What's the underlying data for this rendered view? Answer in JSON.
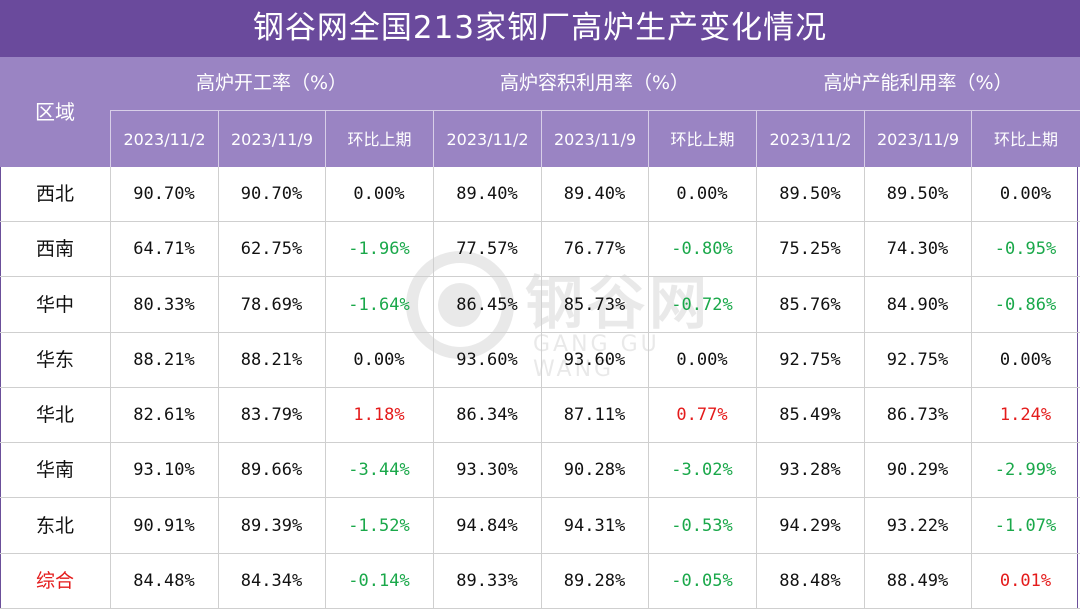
{
  "title": "钢谷网全国213家钢厂高炉生产变化情况",
  "header": {
    "region": "区域",
    "groups": [
      "高炉开工率（%）",
      "高炉容积利用率（%）",
      "高炉产能利用率（%）"
    ],
    "subheads": [
      "2023/11/2",
      "2023/11/9",
      "环比上期"
    ]
  },
  "rows": [
    {
      "region": "西北",
      "values": [
        "90.70%",
        "90.70%",
        "0.00%",
        "89.40%",
        "89.40%",
        "0.00%",
        "89.50%",
        "89.50%",
        "0.00%"
      ]
    },
    {
      "region": "西南",
      "values": [
        "64.71%",
        "62.75%",
        "-1.96%",
        "77.57%",
        "76.77%",
        "-0.80%",
        "75.25%",
        "74.30%",
        "-0.95%"
      ]
    },
    {
      "region": "华中",
      "values": [
        "80.33%",
        "78.69%",
        "-1.64%",
        "86.45%",
        "85.73%",
        "-0.72%",
        "85.76%",
        "84.90%",
        "-0.86%"
      ]
    },
    {
      "region": "华东",
      "values": [
        "88.21%",
        "88.21%",
        "0.00%",
        "93.60%",
        "93.60%",
        "0.00%",
        "92.75%",
        "92.75%",
        "0.00%"
      ]
    },
    {
      "region": "华北",
      "values": [
        "82.61%",
        "83.79%",
        "1.18%",
        "86.34%",
        "87.11%",
        "0.77%",
        "85.49%",
        "86.73%",
        "1.24%"
      ]
    },
    {
      "region": "华南",
      "values": [
        "93.10%",
        "89.66%",
        "-3.44%",
        "93.30%",
        "90.28%",
        "-3.02%",
        "93.28%",
        "90.29%",
        "-2.99%"
      ]
    },
    {
      "region": "东北",
      "values": [
        "90.91%",
        "89.39%",
        "-1.52%",
        "94.84%",
        "94.31%",
        "-0.53%",
        "94.29%",
        "93.22%",
        "-1.07%"
      ]
    },
    {
      "region": "综合",
      "values": [
        "84.48%",
        "84.34%",
        "-0.14%",
        "89.33%",
        "89.28%",
        "-0.05%",
        "88.48%",
        "88.49%",
        "0.01%"
      ]
    }
  ],
  "watermark": {
    "logo": "钢谷网",
    "sub": "GANG GU WANG"
  },
  "colors": {
    "title_bg": "#6a4a9c",
    "header_bg": "#9a84c3",
    "positive": "#e41b1b",
    "negative": "#1aa84a",
    "summary_label": "#e41b1b"
  }
}
